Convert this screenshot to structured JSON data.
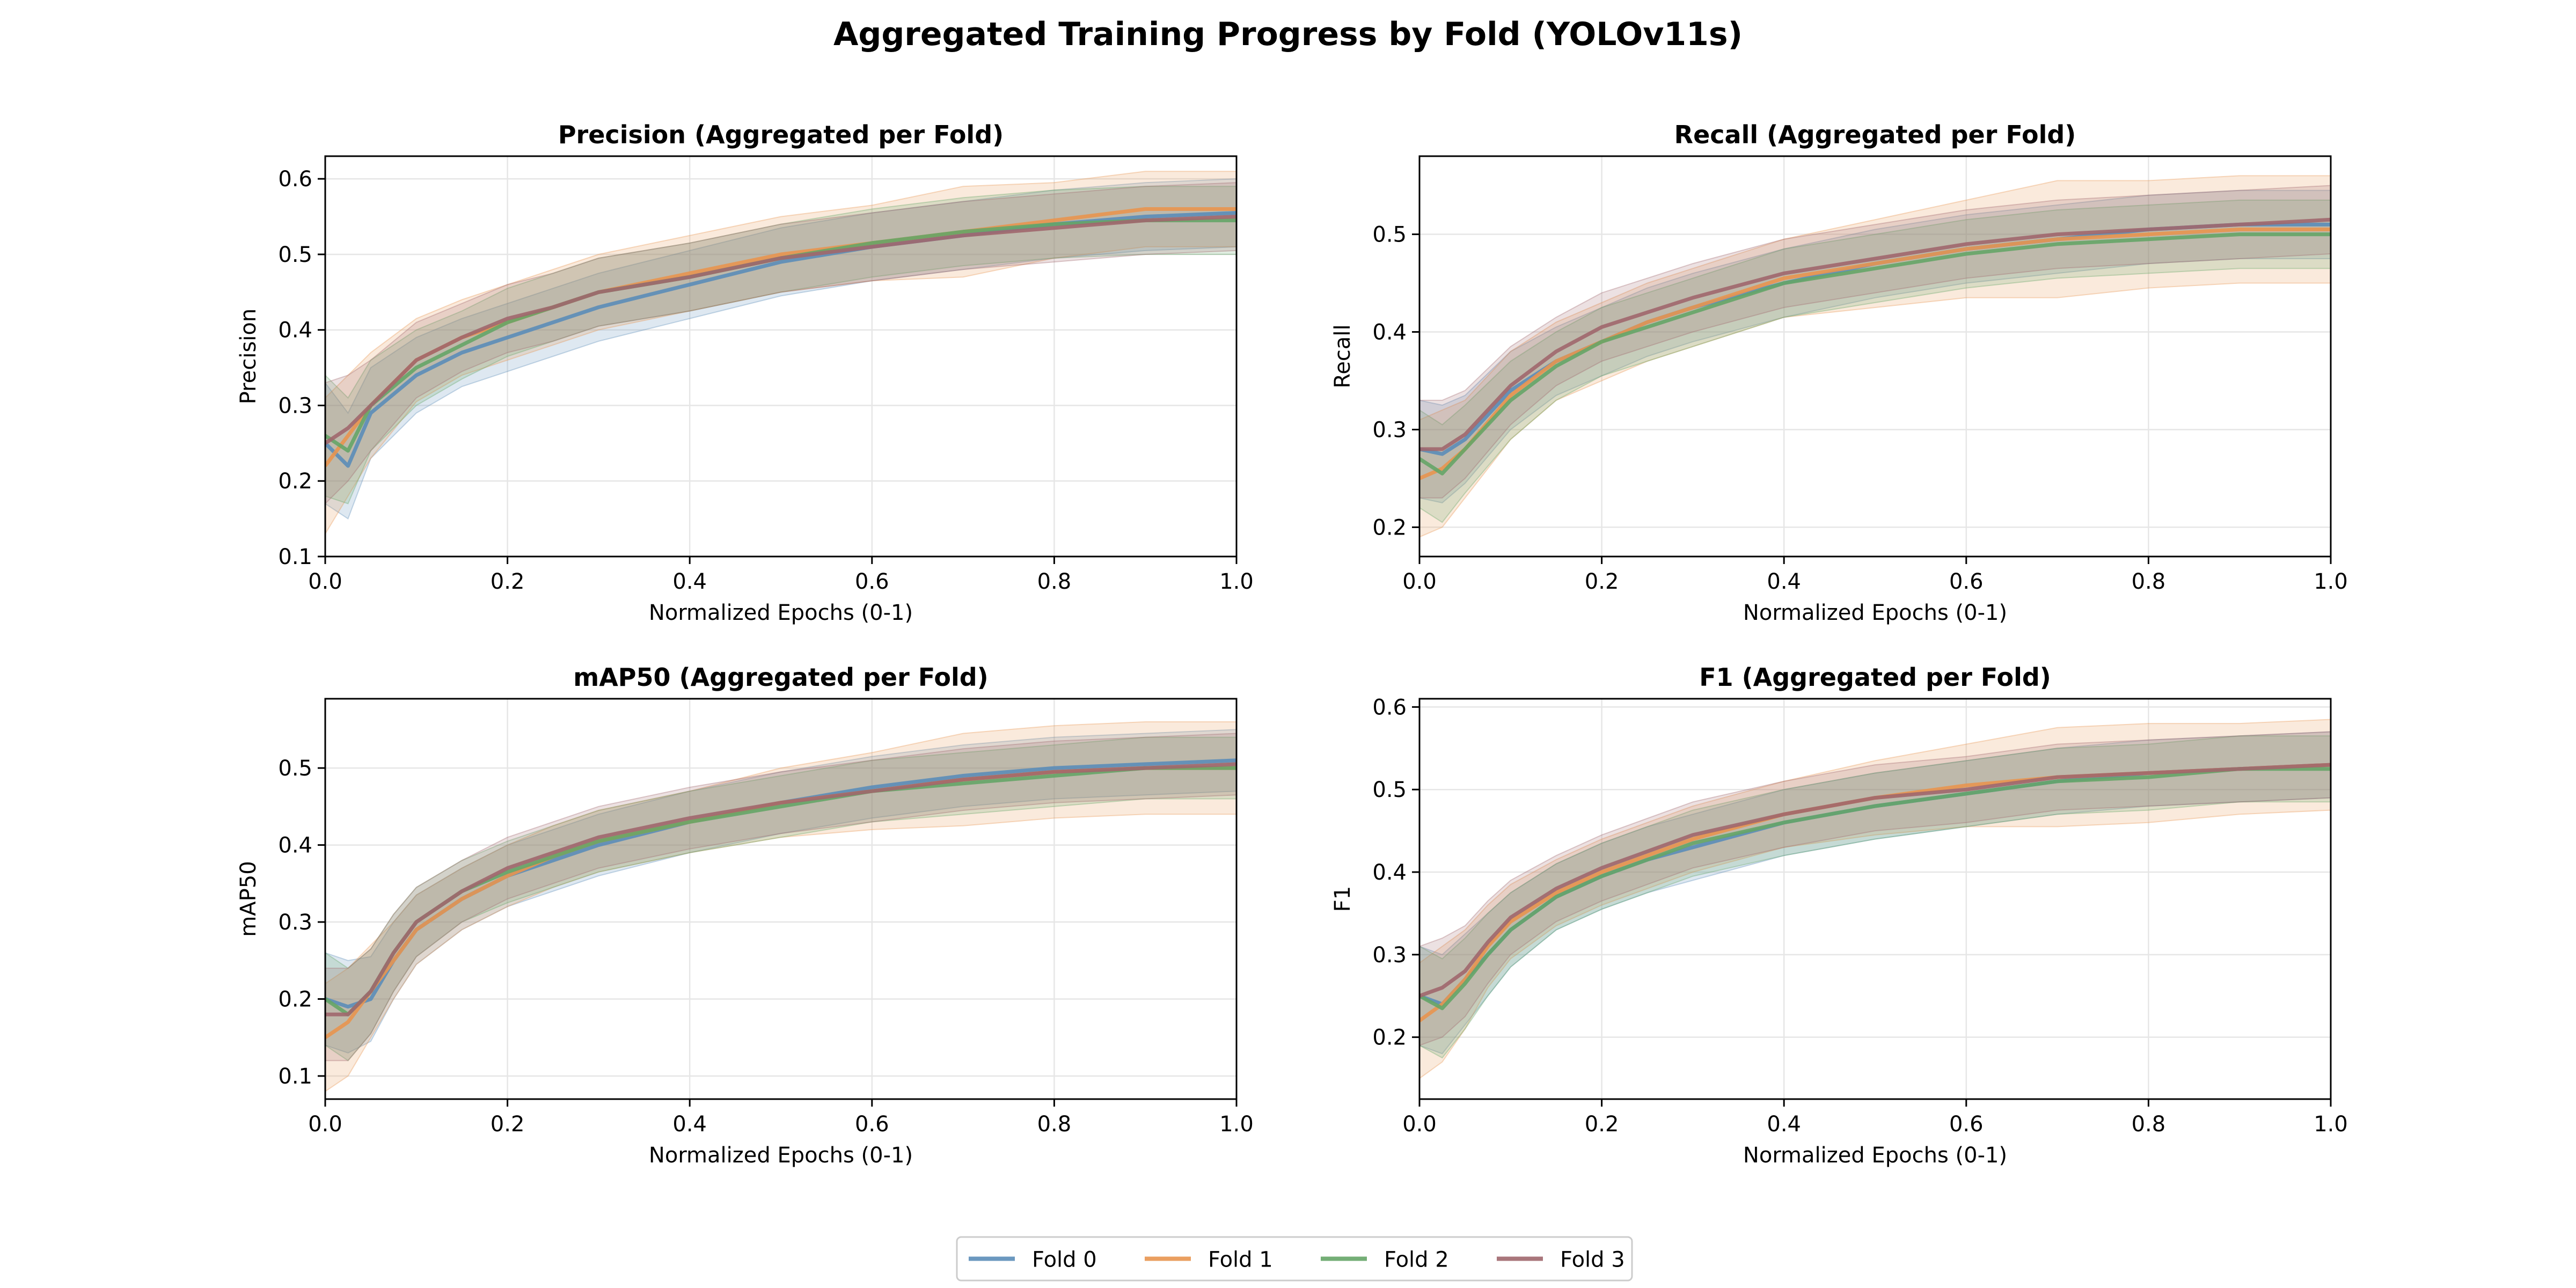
{
  "title": "Aggregated Training Progress by Fold (YOLOv11s)",
  "colors": {
    "Fold 0": "#5b8db8",
    "Fold 1": "#e8954f",
    "Fold 2": "#65a567",
    "Fold 3": "#a0676d",
    "grid": "#e6e6e6",
    "axis": "#000000"
  },
  "legend": {
    "placement": "bottom-center",
    "entries": [
      "Fold 0",
      "Fold 1",
      "Fold 2",
      "Fold 3"
    ]
  },
  "chart_data": [
    {
      "type": "line",
      "title": "Precision (Aggregated per Fold)",
      "xlabel": "Normalized Epochs (0-1)",
      "ylabel": "Precision",
      "xlim": [
        0,
        1
      ],
      "ylim": [
        0.1,
        0.63
      ],
      "xticks": [
        "0.0",
        "0.2",
        "0.4",
        "0.6",
        "0.8",
        "1.0"
      ],
      "yticks": [
        "0.1",
        "0.2",
        "0.3",
        "0.4",
        "0.5",
        "0.6"
      ],
      "ytick_values": [
        0.1,
        0.2,
        0.3,
        0.4,
        0.5,
        0.6
      ],
      "grid": true,
      "x": [
        0,
        0.025,
        0.05,
        0.1,
        0.15,
        0.2,
        0.25,
        0.3,
        0.4,
        0.5,
        0.6,
        0.7,
        0.8,
        0.9,
        1.0
      ],
      "series": [
        {
          "name": "Fold 0",
          "values": [
            0.25,
            0.22,
            0.29,
            0.34,
            0.37,
            0.39,
            0.41,
            0.43,
            0.46,
            0.49,
            0.51,
            0.525,
            0.54,
            0.55,
            0.555
          ],
          "band": [
            0.08,
            0.07,
            0.06,
            0.05,
            0.045,
            0.045,
            0.045,
            0.045,
            0.045,
            0.045,
            0.045,
            0.045,
            0.045,
            0.045,
            0.045
          ]
        },
        {
          "name": "Fold 1",
          "values": [
            0.22,
            0.26,
            0.3,
            0.36,
            0.39,
            0.41,
            0.43,
            0.45,
            0.475,
            0.5,
            0.515,
            0.53,
            0.545,
            0.56,
            0.56
          ],
          "band": [
            0.09,
            0.08,
            0.07,
            0.055,
            0.05,
            0.05,
            0.05,
            0.05,
            0.05,
            0.05,
            0.05,
            0.06,
            0.05,
            0.05,
            0.05
          ]
        },
        {
          "name": "Fold 2",
          "values": [
            0.26,
            0.24,
            0.3,
            0.35,
            0.38,
            0.41,
            0.43,
            0.45,
            0.47,
            0.495,
            0.515,
            0.53,
            0.54,
            0.545,
            0.545
          ],
          "band": [
            0.08,
            0.07,
            0.06,
            0.05,
            0.045,
            0.045,
            0.045,
            0.045,
            0.045,
            0.045,
            0.045,
            0.045,
            0.045,
            0.045,
            0.045
          ]
        },
        {
          "name": "Fold 3",
          "values": [
            0.25,
            0.27,
            0.3,
            0.36,
            0.39,
            0.415,
            0.43,
            0.45,
            0.47,
            0.495,
            0.51,
            0.525,
            0.535,
            0.545,
            0.55
          ],
          "band": [
            0.08,
            0.07,
            0.06,
            0.05,
            0.045,
            0.045,
            0.045,
            0.045,
            0.045,
            0.045,
            0.045,
            0.045,
            0.045,
            0.045,
            0.045
          ]
        }
      ]
    },
    {
      "type": "line",
      "title": "Recall (Aggregated per Fold)",
      "xlabel": "Normalized Epochs (0-1)",
      "ylabel": "Recall",
      "xlim": [
        0,
        1
      ],
      "ylim": [
        0.17,
        0.58
      ],
      "xticks": [
        "0.0",
        "0.2",
        "0.4",
        "0.6",
        "0.8",
        "1.0"
      ],
      "yticks": [
        "0.2",
        "0.3",
        "0.4",
        "0.5"
      ],
      "ytick_values": [
        0.2,
        0.3,
        0.4,
        0.5
      ],
      "grid": true,
      "x": [
        0,
        0.025,
        0.05,
        0.1,
        0.15,
        0.2,
        0.25,
        0.3,
        0.4,
        0.5,
        0.6,
        0.7,
        0.8,
        0.9,
        1.0
      ],
      "series": [
        {
          "name": "Fold 0",
          "values": [
            0.28,
            0.275,
            0.29,
            0.34,
            0.37,
            0.39,
            0.41,
            0.425,
            0.45,
            0.47,
            0.485,
            0.495,
            0.505,
            0.51,
            0.51
          ],
          "band": [
            0.05,
            0.05,
            0.045,
            0.04,
            0.035,
            0.035,
            0.035,
            0.035,
            0.035,
            0.035,
            0.035,
            0.035,
            0.035,
            0.035,
            0.035
          ]
        },
        {
          "name": "Fold 1",
          "values": [
            0.25,
            0.26,
            0.28,
            0.335,
            0.37,
            0.39,
            0.41,
            0.425,
            0.455,
            0.47,
            0.485,
            0.495,
            0.5,
            0.505,
            0.505
          ],
          "band": [
            0.06,
            0.06,
            0.05,
            0.045,
            0.04,
            0.04,
            0.04,
            0.04,
            0.04,
            0.045,
            0.05,
            0.06,
            0.055,
            0.055,
            0.055
          ]
        },
        {
          "name": "Fold 2",
          "values": [
            0.27,
            0.255,
            0.28,
            0.33,
            0.365,
            0.39,
            0.405,
            0.42,
            0.45,
            0.465,
            0.48,
            0.49,
            0.495,
            0.5,
            0.5
          ],
          "band": [
            0.05,
            0.05,
            0.045,
            0.04,
            0.035,
            0.035,
            0.035,
            0.035,
            0.035,
            0.035,
            0.035,
            0.035,
            0.035,
            0.035,
            0.035
          ]
        },
        {
          "name": "Fold 3",
          "values": [
            0.28,
            0.28,
            0.295,
            0.345,
            0.38,
            0.405,
            0.42,
            0.435,
            0.46,
            0.475,
            0.49,
            0.5,
            0.505,
            0.51,
            0.515
          ],
          "band": [
            0.05,
            0.05,
            0.045,
            0.04,
            0.035,
            0.035,
            0.035,
            0.035,
            0.035,
            0.035,
            0.035,
            0.035,
            0.035,
            0.035,
            0.035
          ]
        }
      ]
    },
    {
      "type": "line",
      "title": "mAP50 (Aggregated per Fold)",
      "xlabel": "Normalized Epochs (0-1)",
      "ylabel": "mAP50",
      "xlim": [
        0,
        1
      ],
      "ylim": [
        0.07,
        0.59
      ],
      "xticks": [
        "0.0",
        "0.2",
        "0.4",
        "0.6",
        "0.8",
        "1.0"
      ],
      "yticks": [
        "0.1",
        "0.2",
        "0.3",
        "0.4",
        "0.5"
      ],
      "ytick_values": [
        0.1,
        0.2,
        0.3,
        0.4,
        0.5
      ],
      "grid": true,
      "x": [
        0,
        0.025,
        0.05,
        0.075,
        0.1,
        0.15,
        0.2,
        0.25,
        0.3,
        0.4,
        0.5,
        0.6,
        0.7,
        0.8,
        0.9,
        1.0
      ],
      "series": [
        {
          "name": "Fold 0",
          "values": [
            0.2,
            0.19,
            0.2,
            0.25,
            0.29,
            0.33,
            0.36,
            0.38,
            0.4,
            0.43,
            0.455,
            0.475,
            0.49,
            0.5,
            0.505,
            0.51
          ],
          "band": [
            0.06,
            0.06,
            0.055,
            0.05,
            0.045,
            0.04,
            0.04,
            0.04,
            0.04,
            0.04,
            0.04,
            0.04,
            0.04,
            0.04,
            0.04,
            0.04
          ]
        },
        {
          "name": "Fold 1",
          "values": [
            0.15,
            0.17,
            0.21,
            0.25,
            0.29,
            0.33,
            0.36,
            0.385,
            0.405,
            0.43,
            0.455,
            0.47,
            0.485,
            0.495,
            0.5,
            0.5
          ],
          "band": [
            0.07,
            0.07,
            0.06,
            0.05,
            0.045,
            0.04,
            0.04,
            0.04,
            0.04,
            0.04,
            0.045,
            0.05,
            0.06,
            0.06,
            0.06,
            0.06
          ]
        },
        {
          "name": "Fold 2",
          "values": [
            0.2,
            0.18,
            0.21,
            0.26,
            0.3,
            0.34,
            0.365,
            0.385,
            0.405,
            0.43,
            0.45,
            0.47,
            0.48,
            0.49,
            0.5,
            0.5
          ],
          "band": [
            0.06,
            0.06,
            0.055,
            0.05,
            0.045,
            0.04,
            0.04,
            0.04,
            0.04,
            0.04,
            0.04,
            0.04,
            0.04,
            0.04,
            0.04,
            0.04
          ]
        },
        {
          "name": "Fold 3",
          "values": [
            0.18,
            0.18,
            0.21,
            0.26,
            0.3,
            0.34,
            0.37,
            0.39,
            0.41,
            0.435,
            0.455,
            0.47,
            0.485,
            0.495,
            0.5,
            0.505
          ],
          "band": [
            0.06,
            0.06,
            0.055,
            0.05,
            0.045,
            0.04,
            0.04,
            0.04,
            0.04,
            0.04,
            0.04,
            0.04,
            0.04,
            0.04,
            0.04,
            0.04
          ]
        }
      ]
    },
    {
      "type": "line",
      "title": "F1 (Aggregated per Fold)",
      "xlabel": "Normalized Epochs (0-1)",
      "ylabel": "F1",
      "xlim": [
        0,
        1
      ],
      "ylim": [
        0.125,
        0.61
      ],
      "xticks": [
        "0.0",
        "0.2",
        "0.4",
        "0.6",
        "0.8",
        "1.0"
      ],
      "yticks": [
        "0.2",
        "0.3",
        "0.4",
        "0.5",
        "0.6"
      ],
      "ytick_values": [
        0.2,
        0.3,
        0.4,
        0.5,
        0.6
      ],
      "grid": true,
      "x": [
        0,
        0.025,
        0.05,
        0.075,
        0.1,
        0.15,
        0.2,
        0.25,
        0.3,
        0.4,
        0.5,
        0.6,
        0.7,
        0.8,
        0.9,
        1.0
      ],
      "series": [
        {
          "name": "Fold 0",
          "values": [
            0.25,
            0.24,
            0.27,
            0.3,
            0.33,
            0.37,
            0.395,
            0.415,
            0.43,
            0.46,
            0.48,
            0.495,
            0.51,
            0.52,
            0.525,
            0.53
          ],
          "band": [
            0.06,
            0.06,
            0.055,
            0.05,
            0.045,
            0.04,
            0.04,
            0.04,
            0.04,
            0.04,
            0.04,
            0.04,
            0.04,
            0.04,
            0.04,
            0.04
          ]
        },
        {
          "name": "Fold 1",
          "values": [
            0.22,
            0.24,
            0.27,
            0.31,
            0.34,
            0.375,
            0.4,
            0.42,
            0.44,
            0.47,
            0.49,
            0.505,
            0.515,
            0.52,
            0.525,
            0.53
          ],
          "band": [
            0.07,
            0.07,
            0.06,
            0.05,
            0.045,
            0.04,
            0.04,
            0.04,
            0.04,
            0.04,
            0.045,
            0.05,
            0.06,
            0.06,
            0.055,
            0.055
          ]
        },
        {
          "name": "Fold 2",
          "values": [
            0.25,
            0.235,
            0.265,
            0.3,
            0.33,
            0.37,
            0.395,
            0.415,
            0.435,
            0.46,
            0.48,
            0.495,
            0.51,
            0.515,
            0.525,
            0.525
          ],
          "band": [
            0.06,
            0.06,
            0.055,
            0.05,
            0.045,
            0.04,
            0.04,
            0.04,
            0.04,
            0.04,
            0.04,
            0.04,
            0.04,
            0.04,
            0.04,
            0.04
          ]
        },
        {
          "name": "Fold 3",
          "values": [
            0.25,
            0.26,
            0.28,
            0.315,
            0.345,
            0.38,
            0.405,
            0.425,
            0.445,
            0.47,
            0.49,
            0.5,
            0.515,
            0.52,
            0.525,
            0.53
          ],
          "band": [
            0.06,
            0.06,
            0.055,
            0.05,
            0.045,
            0.04,
            0.04,
            0.04,
            0.04,
            0.04,
            0.04,
            0.04,
            0.04,
            0.04,
            0.04,
            0.04
          ]
        }
      ]
    }
  ]
}
